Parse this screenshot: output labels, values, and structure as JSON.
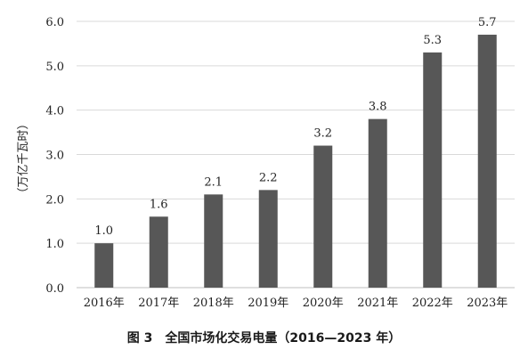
{
  "chart_data": {
    "type": "bar",
    "categories": [
      "2016年",
      "2017年",
      "2018年",
      "2019年",
      "2020年",
      "2021年",
      "2022年",
      "2023年"
    ],
    "values": [
      1.0,
      1.6,
      2.1,
      2.2,
      3.2,
      3.8,
      5.3,
      5.7
    ],
    "data_labels": [
      "1.0",
      "1.6",
      "2.1",
      "2.2",
      "3.2",
      "3.8",
      "5.3",
      "5.7"
    ],
    "title": "图 3　全国市场化交易电量（2016—2023 年）",
    "xlabel": "",
    "ylabel": "（万亿千瓦时）",
    "ylim": [
      0,
      6
    ],
    "y_ticks": [
      "0.0",
      "1.0",
      "2.0",
      "3.0",
      "4.0",
      "5.0",
      "6.0"
    ],
    "grid": "horizontal",
    "legend": "none",
    "colors": {
      "bar": "#575757",
      "grid": "#d9d9d9",
      "axis": "#bfbfbf"
    }
  }
}
